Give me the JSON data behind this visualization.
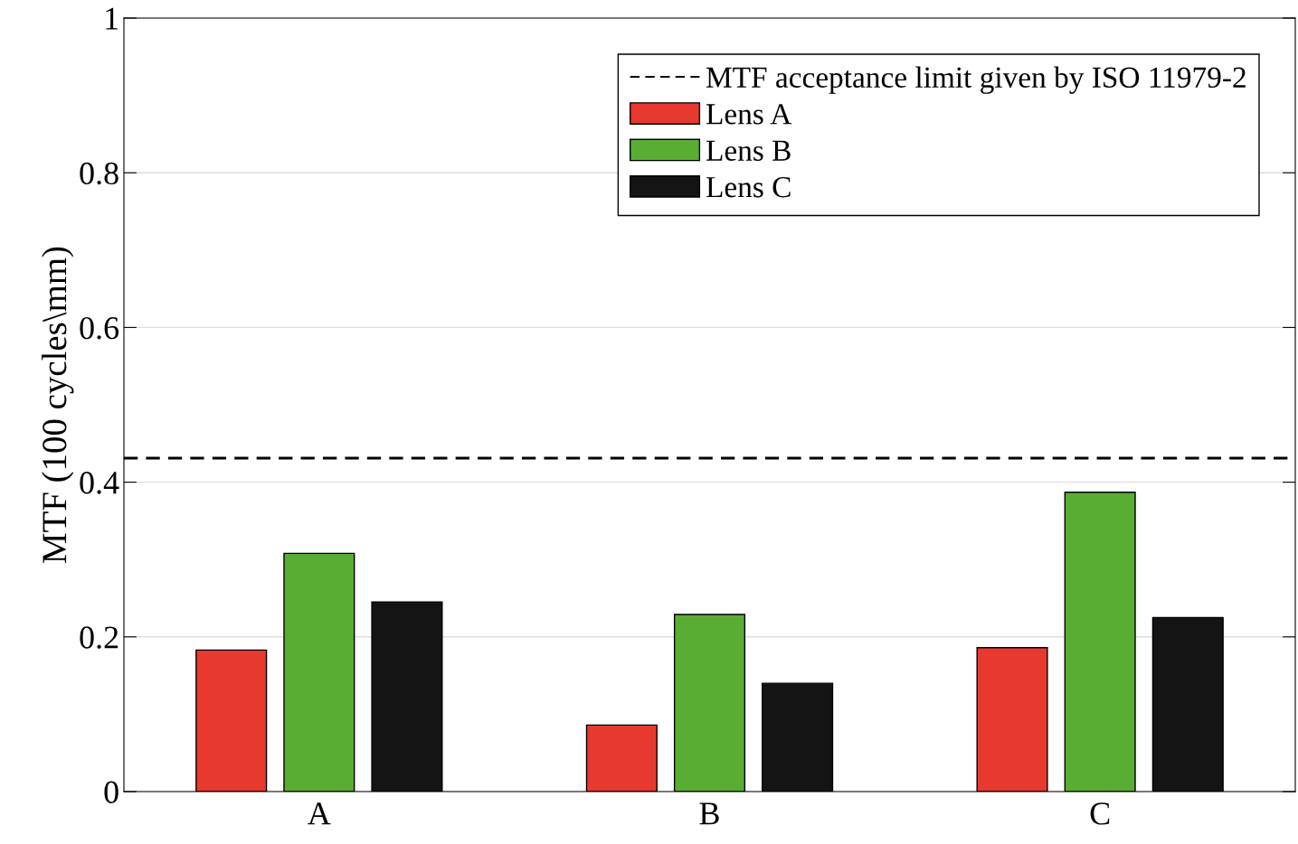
{
  "chart_data": {
    "type": "bar",
    "ylabel": "MTF (100 cycles\\mm)",
    "categories": [
      "A",
      "B",
      "C"
    ],
    "series": [
      {
        "name": "Lens A",
        "color": "#e8392f",
        "values": [
          0.183,
          0.086,
          0.186
        ]
      },
      {
        "name": "Lens B",
        "color": "#5aad33",
        "values": [
          0.308,
          0.229,
          0.387
        ]
      },
      {
        "name": "Lens C",
        "color": "#141414",
        "values": [
          0.245,
          0.14,
          0.225
        ]
      }
    ],
    "ylim": [
      0,
      1
    ],
    "yticks": [
      0,
      0.2,
      0.4,
      0.6,
      0.8,
      1
    ],
    "ref_lines": [
      {
        "axis": "y",
        "value": 0.431,
        "label": "MTF acceptance limit given by ISO 11979-2",
        "color": "#000000",
        "line_style": "dashed"
      }
    ],
    "grid": "y",
    "legend": "top right"
  }
}
